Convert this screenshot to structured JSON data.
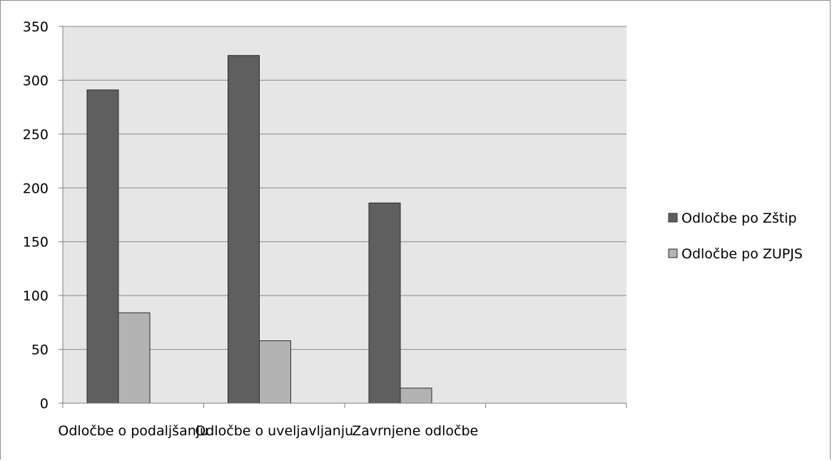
{
  "chart_data": {
    "type": "bar",
    "categories": [
      "Odločbe o podaljšanju",
      "Odločbe o uveljavljanju",
      "Zavrnjene odločbe"
    ],
    "series": [
      {
        "name": "Odločbe po Zštip",
        "values": [
          291,
          323,
          186
        ],
        "color": "#5f5f5f"
      },
      {
        "name": "Odločbe po ZUPJS",
        "values": [
          84,
          58,
          14
        ],
        "color": "#b3b3b3"
      }
    ],
    "ylim": [
      0,
      350
    ],
    "yticks": [
      0,
      50,
      100,
      150,
      200,
      250,
      300,
      350
    ],
    "grid": true,
    "legend_position": "right",
    "plot_background": "#e6e6e6",
    "title": "",
    "xlabel": "",
    "ylabel": ""
  }
}
